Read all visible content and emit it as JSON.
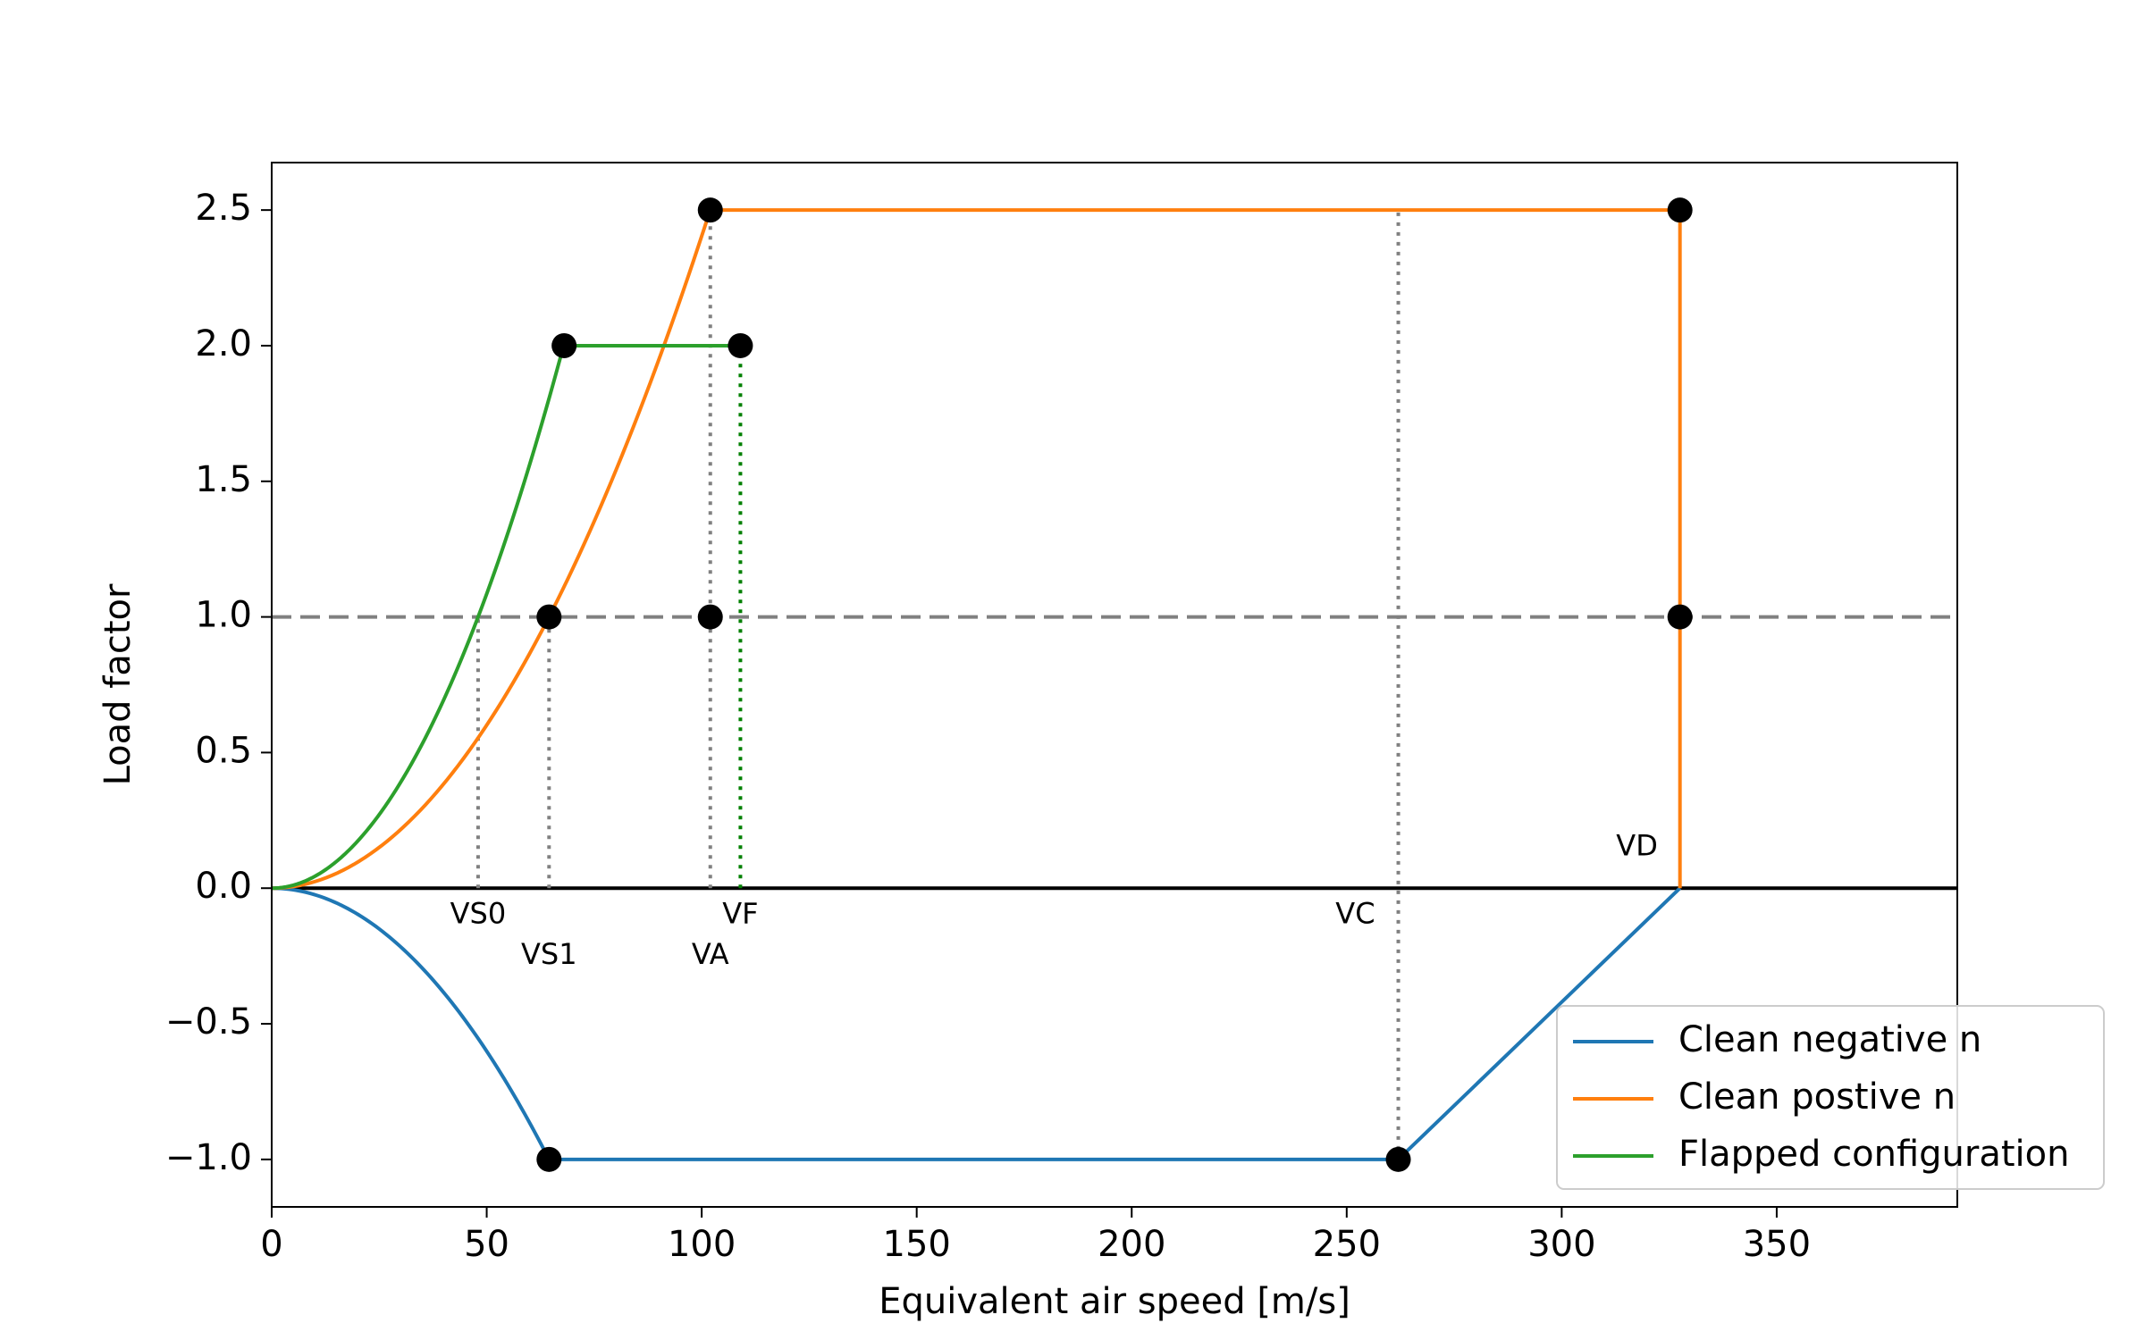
{
  "chart_data": {
    "type": "line",
    "xlabel": "Equivalent air speed [m/s]",
    "ylabel": "Load factor",
    "xlim": [
      0,
      392
    ],
    "ylim": [
      -1.175,
      2.675
    ],
    "xticks": [
      0,
      50,
      100,
      150,
      200,
      250,
      300,
      350
    ],
    "yticks": [
      -1.0,
      -0.5,
      0.0,
      0.5,
      1.0,
      1.5,
      2.0,
      2.5
    ],
    "xtick_labels": [
      "0",
      "50",
      "100",
      "150",
      "200",
      "250",
      "300",
      "350"
    ],
    "ytick_labels": [
      "−1.0",
      "−0.5",
      "0.0",
      "0.5",
      "1.0",
      "1.5",
      "2.0",
      "2.5"
    ],
    "grid": false,
    "legend_position": "lower-right",
    "speeds": {
      "VS0": 48,
      "VS1": 64.5,
      "VA": 102,
      "VF": 109,
      "VC": 262,
      "VD": 327.5
    },
    "series": [
      {
        "name": "Clean negative n",
        "color": "#1f77b4",
        "segments": [
          {
            "kind": "parabola",
            "k": -0.0002404,
            "x_from": 0,
            "x_to": 64.5
          },
          {
            "kind": "line",
            "x": [
              64.5,
              262,
              327.5
            ],
            "y": [
              -1.0,
              -1.0,
              0.0
            ]
          }
        ]
      },
      {
        "name": "Clean postive n",
        "color": "#ff7f0e",
        "segments": [
          {
            "kind": "parabola",
            "k": 0.0002404,
            "x_from": 0,
            "x_to": 102
          },
          {
            "kind": "line",
            "x": [
              102,
              327.5,
              327.5
            ],
            "y": [
              2.5,
              2.5,
              0.0
            ]
          }
        ]
      },
      {
        "name": "Flapped configuration",
        "color": "#2ca02c",
        "segments": [
          {
            "kind": "parabola",
            "k": 0.000434,
            "x_from": 0,
            "x_to": 68
          },
          {
            "kind": "line",
            "x": [
              68,
              109
            ],
            "y": [
              2.0,
              2.0
            ]
          }
        ]
      }
    ],
    "reference_lines": [
      {
        "kind": "hline",
        "y": 0,
        "style": "solid",
        "color": "#000000"
      },
      {
        "kind": "hline",
        "y": 1.0,
        "style": "dashed",
        "color": "#808080"
      },
      {
        "kind": "vline",
        "x": 48,
        "y_from": 0,
        "y_to": 1.0,
        "style": "dotted",
        "color": "#808080"
      },
      {
        "kind": "vline",
        "x": 64.5,
        "y_from": 0,
        "y_to": 1.0,
        "style": "dotted",
        "color": "#808080"
      },
      {
        "kind": "vline",
        "x": 102,
        "y_from": 0,
        "y_to": 2.5,
        "style": "dotted",
        "color": "#808080"
      },
      {
        "kind": "vline",
        "x": 109,
        "y_from": 0,
        "y_to": 2.0,
        "style": "dotted",
        "color": "#008000"
      },
      {
        "kind": "vline",
        "x": 262,
        "y_from": -1.0,
        "y_to": 2.5,
        "style": "dotted",
        "color": "#808080"
      }
    ],
    "points": [
      {
        "x": 102,
        "y": 2.5
      },
      {
        "x": 327.5,
        "y": 2.5
      },
      {
        "x": 68,
        "y": 2.0
      },
      {
        "x": 109,
        "y": 2.0
      },
      {
        "x": 64.5,
        "y": 1.0
      },
      {
        "x": 102,
        "y": 1.0
      },
      {
        "x": 327.5,
        "y": 1.0
      },
      {
        "x": 64.5,
        "y": -1.0
      },
      {
        "x": 262,
        "y": -1.0
      }
    ],
    "annotations": [
      {
        "text": "VS0",
        "x": 48,
        "y": -0.1
      },
      {
        "text": "VS1",
        "x": 64.5,
        "y": -0.25
      },
      {
        "text": "VA",
        "x": 102,
        "y": -0.25
      },
      {
        "text": "VF",
        "x": 109,
        "y": -0.1
      },
      {
        "text": "VC",
        "x": 252,
        "y": -0.1
      },
      {
        "text": "VD",
        "x": 317.5,
        "y": 0.15
      }
    ]
  }
}
